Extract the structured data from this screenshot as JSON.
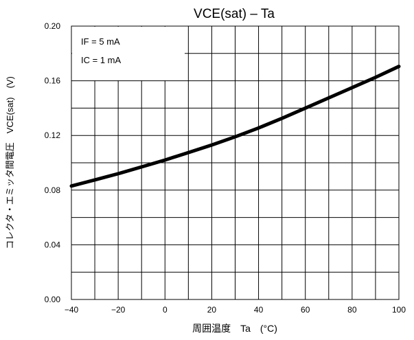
{
  "chart_data": {
    "type": "line",
    "title": "VCE(sat) – Ta",
    "xlabel": "周囲温度　Ta　(°C)",
    "ylabel": "コレクタ・エミッタ間電圧　VCE(sat)　(V)",
    "xlim": [
      -40,
      100
    ],
    "ylim": [
      0.0,
      0.2
    ],
    "x_ticks": [
      -40,
      -20,
      0,
      20,
      40,
      60,
      80,
      100
    ],
    "y_ticks": [
      "0.00",
      "0.04",
      "0.08",
      "0.12",
      "0.16",
      "0.20"
    ],
    "x_minor_step": 10,
    "y_minor_step": 0.02,
    "grid": true,
    "annotations": [
      "IF = 5 mA",
      "IC = 1 mA"
    ],
    "series": [
      {
        "x": [
          -40,
          -30,
          -20,
          -10,
          0,
          10,
          20,
          30,
          40,
          50,
          60,
          70,
          80,
          90,
          100
        ],
        "y": [
          0.083,
          0.0875,
          0.092,
          0.097,
          0.102,
          0.1075,
          0.113,
          0.119,
          0.1255,
          0.1325,
          0.14,
          0.1475,
          0.155,
          0.1625,
          0.1705
        ]
      }
    ]
  }
}
